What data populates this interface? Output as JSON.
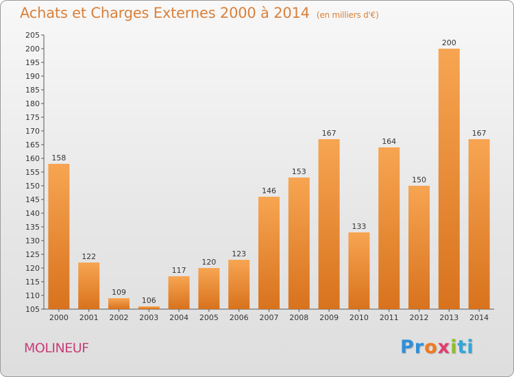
{
  "header": {
    "title": "Achats et Charges Externes 2000 à 2014",
    "subtitle": "(en milliers d'€)"
  },
  "footer": {
    "town": "MOLINEUF",
    "brand": {
      "p1": "Pr",
      "p2": "o",
      "p3": "x",
      "p4": "i",
      "p5": "ti"
    }
  },
  "colors": {
    "bar_light": "#f6a24f",
    "bar_dark": "#d9731f",
    "title": "#d9803a",
    "town": "#c93d7a"
  },
  "chart_data": {
    "type": "bar",
    "title": "Achats et Charges Externes 2000 à 2014",
    "subtitle": "(en milliers d'€)",
    "categories": [
      "2000",
      "2001",
      "2002",
      "2003",
      "2004",
      "2005",
      "2006",
      "2007",
      "2008",
      "2009",
      "2010",
      "2011",
      "2012",
      "2013",
      "2014"
    ],
    "values": [
      158,
      122,
      109,
      106,
      117,
      120,
      123,
      146,
      153,
      167,
      133,
      164,
      150,
      200,
      167
    ],
    "ylim": [
      105,
      205
    ],
    "yticks": [
      105,
      110,
      115,
      120,
      125,
      130,
      135,
      140,
      145,
      150,
      155,
      160,
      165,
      170,
      175,
      180,
      185,
      190,
      195,
      200,
      205
    ],
    "xlabel": "",
    "ylabel": "",
    "grid": false
  }
}
